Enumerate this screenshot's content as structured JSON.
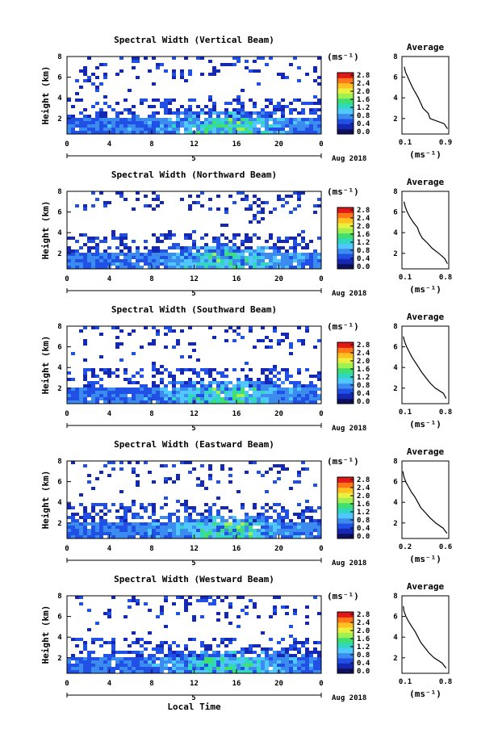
{
  "figure": {
    "shared_xlabel": "Local Time",
    "shared_unit_label": "(ms⁻¹)",
    "date_label": "Aug 2018",
    "day_label": "5"
  },
  "colorscale": [
    "#101060",
    "#1428b4",
    "#2050e6",
    "#3c8cf0",
    "#50c8ff",
    "#30d8c0",
    "#40e070",
    "#a0f050",
    "#e8f040",
    "#ffc020",
    "#ff7818",
    "#e01818"
  ],
  "chart_data": [
    {
      "type": "heatmap",
      "title": "Spectral Width (Vertical Beam)",
      "ylabel": "Height (km)",
      "xlim": [
        0,
        24
      ],
      "ylim": [
        0.5,
        8
      ],
      "xticks": [
        "0",
        "4",
        "8",
        "12",
        "16",
        "20",
        "0"
      ],
      "yticks": [
        "2",
        "4",
        "6",
        "8"
      ],
      "colorbar": {
        "label": "(ms⁻¹)",
        "ticks": [
          "0.0",
          "0.4",
          "0.8",
          "1.2",
          "1.6",
          "2.0",
          "2.4",
          "2.8"
        ]
      },
      "average_profile": {
        "title": "Average",
        "xlabel": "(ms⁻¹)",
        "xlim": [
          0.1,
          0.9
        ],
        "xticks": [
          "0.1",
          "0.9"
        ],
        "ylim": [
          0.5,
          8
        ],
        "yticks": [
          "2",
          "4",
          "6",
          "8"
        ],
        "heights": [
          1.0,
          1.5,
          2.0,
          2.5,
          3.0,
          3.5,
          4.0,
          4.5,
          5.0,
          5.5,
          6.0,
          6.5,
          7.0
        ],
        "values": [
          0.88,
          0.82,
          0.58,
          0.55,
          0.46,
          0.42,
          0.38,
          0.33,
          0.28,
          0.24,
          0.2,
          0.16,
          0.14
        ]
      }
    },
    {
      "type": "heatmap",
      "title": "Spectral Width (Northward Beam)",
      "ylabel": "Height (km)",
      "xlim": [
        0,
        24
      ],
      "ylim": [
        0.5,
        8
      ],
      "xticks": [
        "0",
        "4",
        "8",
        "12",
        "16",
        "20",
        "0"
      ],
      "yticks": [
        "2",
        "4",
        "6",
        "8"
      ],
      "colorbar": {
        "label": "(ms⁻¹)",
        "ticks": [
          "0.0",
          "0.4",
          "0.8",
          "1.2",
          "1.6",
          "2.0",
          "2.4",
          "2.8"
        ]
      },
      "average_profile": {
        "title": "Average",
        "xlabel": "(ms⁻¹)",
        "xlim": [
          0.1,
          0.8
        ],
        "xticks": [
          "0.1",
          "0.8"
        ],
        "ylim": [
          0.5,
          8
        ],
        "yticks": [
          "2",
          "4",
          "6",
          "8"
        ],
        "heights": [
          1.0,
          1.5,
          2.0,
          2.5,
          3.0,
          3.5,
          4.0,
          4.5,
          5.0,
          5.5,
          6.0,
          6.5,
          7.0
        ],
        "values": [
          0.78,
          0.74,
          0.65,
          0.55,
          0.48,
          0.4,
          0.36,
          0.33,
          0.27,
          0.22,
          0.18,
          0.15,
          0.13
        ]
      }
    },
    {
      "type": "heatmap",
      "title": "Spectral Width (Southward Beam)",
      "ylabel": "Height (km)",
      "xlim": [
        0,
        24
      ],
      "ylim": [
        0.5,
        8
      ],
      "xticks": [
        "0",
        "4",
        "8",
        "12",
        "16",
        "20",
        "0"
      ],
      "yticks": [
        "2",
        "4",
        "6",
        "8"
      ],
      "colorbar": {
        "label": "(ms⁻¹)",
        "ticks": [
          "0.0",
          "0.4",
          "0.8",
          "1.2",
          "1.6",
          "2.0",
          "2.4",
          "2.8"
        ]
      },
      "average_profile": {
        "title": "Average",
        "xlabel": "(ms⁻¹)",
        "xlim": [
          0.1,
          0.8
        ],
        "xticks": [
          "0.1",
          "0.8"
        ],
        "ylim": [
          0.5,
          8
        ],
        "yticks": [
          "2",
          "4",
          "6",
          "8"
        ],
        "heights": [
          1.0,
          1.5,
          2.0,
          2.5,
          3.0,
          3.5,
          4.0,
          4.5,
          5.0,
          5.5,
          6.0,
          6.5,
          7.0
        ],
        "values": [
          0.76,
          0.72,
          0.6,
          0.52,
          0.46,
          0.4,
          0.35,
          0.3,
          0.25,
          0.21,
          0.17,
          0.14,
          0.12
        ]
      }
    },
    {
      "type": "heatmap",
      "title": "Spectral Width (Eastward Beam)",
      "ylabel": "Height (km)",
      "xlim": [
        0,
        24
      ],
      "ylim": [
        0.5,
        8
      ],
      "xticks": [
        "0",
        "4",
        "8",
        "12",
        "16",
        "20",
        "0"
      ],
      "yticks": [
        "2",
        "4",
        "6",
        "8"
      ],
      "colorbar": {
        "label": "(ms⁻¹)",
        "ticks": [
          "0.0",
          "0.4",
          "0.8",
          "1.2",
          "1.6",
          "2.0",
          "2.4",
          "2.8"
        ]
      },
      "average_profile": {
        "title": "Average",
        "xlabel": "(ms⁻¹)",
        "xlim": [
          0.1,
          0.6
        ],
        "xticks": [
          "0.2",
          "0.6"
        ],
        "ylim": [
          0.5,
          8
        ],
        "yticks": [
          "2",
          "4",
          "6",
          "8"
        ],
        "heights": [
          1.0,
          1.5,
          2.0,
          2.5,
          3.0,
          3.5,
          4.0,
          4.5,
          5.0,
          5.5,
          6.0,
          6.5,
          7.0
        ],
        "values": [
          0.58,
          0.54,
          0.46,
          0.4,
          0.35,
          0.3,
          0.27,
          0.24,
          0.2,
          0.17,
          0.14,
          0.12,
          0.11
        ]
      }
    },
    {
      "type": "heatmap",
      "title": "Spectral Width (Westward Beam)",
      "ylabel": "Height (km)",
      "xlim": [
        0,
        24
      ],
      "ylim": [
        0.5,
        8
      ],
      "xticks": [
        "0",
        "4",
        "8",
        "12",
        "16",
        "20",
        "0"
      ],
      "yticks": [
        "2",
        "4",
        "6",
        "8"
      ],
      "colorbar": {
        "label": "(ms⁻¹)",
        "ticks": [
          "0.0",
          "0.4",
          "0.8",
          "1.2",
          "1.6",
          "2.0",
          "2.4",
          "2.8"
        ]
      },
      "average_profile": {
        "title": "Average",
        "xlabel": "(ms⁻¹)",
        "xlim": [
          0.1,
          0.8
        ],
        "xticks": [
          "0.1",
          "0.8"
        ],
        "ylim": [
          0.5,
          8
        ],
        "yticks": [
          "2",
          "4",
          "6",
          "8"
        ],
        "heights": [
          1.0,
          1.5,
          2.0,
          2.5,
          3.0,
          3.5,
          4.0,
          4.5,
          5.0,
          5.5,
          6.0,
          6.5,
          7.0
        ],
        "values": [
          0.76,
          0.7,
          0.58,
          0.5,
          0.44,
          0.38,
          0.34,
          0.3,
          0.25,
          0.2,
          0.16,
          0.13,
          0.12
        ]
      }
    }
  ]
}
